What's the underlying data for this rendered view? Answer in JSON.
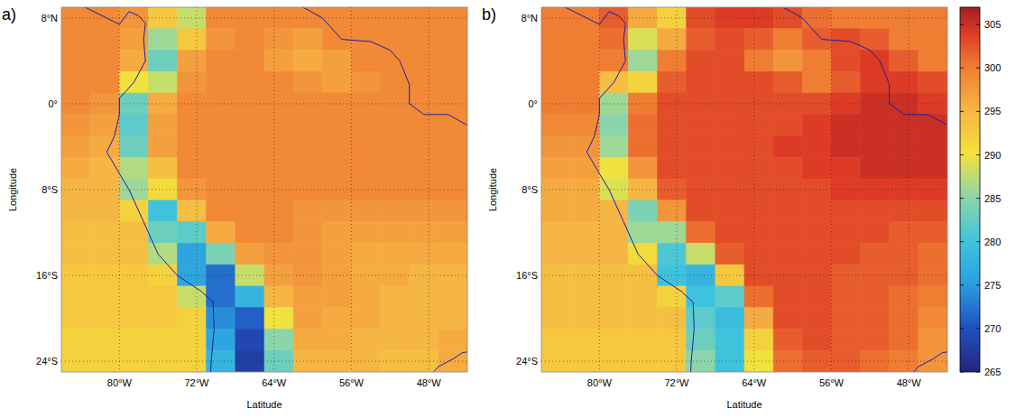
{
  "chart_data": [
    {
      "type": "heatmap",
      "title": "a)",
      "x_label": "Latitude",
      "y_label": "Longitude",
      "xlim": [
        -86,
        -44
      ],
      "ylim": [
        -25,
        9
      ],
      "grid": true,
      "xticks": [
        {
          "value": -80,
          "label": "80°W"
        },
        {
          "value": -72,
          "label": "72°W"
        },
        {
          "value": -64,
          "label": "64°W"
        },
        {
          "value": -56,
          "label": "56°W"
        },
        {
          "value": -48,
          "label": "48°W"
        }
      ],
      "yticks": [
        {
          "value": 8,
          "label": "8°N"
        },
        {
          "value": 0,
          "label": "0°"
        },
        {
          "value": -8,
          "label": "8°S"
        },
        {
          "value": -16,
          "label": "16°S"
        },
        {
          "value": -24,
          "label": "24°S"
        }
      ],
      "x": [
        -84.5,
        -81.5,
        -78.5,
        -75.5,
        -72.5,
        -69.5,
        -66.5,
        -63.5,
        -60.5,
        -57.5,
        -54.5,
        -51.5,
        -48.5,
        -45.5
      ],
      "y": [
        8,
        6,
        4,
        2,
        0,
        -2,
        -4,
        -6,
        -8,
        -10,
        -12,
        -14,
        -16,
        -18,
        -20,
        -22,
        -24
      ],
      "cells": [
        [
          299,
          299,
          298,
          293,
          288,
          299,
          299,
          299,
          299,
          299,
          299,
          299,
          299,
          299
        ],
        [
          299,
          299,
          297,
          286,
          293,
          298,
          299,
          298,
          297,
          299,
          299,
          299,
          299,
          299
        ],
        [
          299,
          299,
          296,
          283,
          297,
          299,
          299,
          297,
          296,
          297,
          299,
          299,
          299,
          299
        ],
        [
          299,
          299,
          290,
          288,
          298,
          299,
          299,
          299,
          298,
          297,
          298,
          299,
          299,
          299
        ],
        [
          299,
          298,
          283,
          296,
          299,
          299,
          299,
          299,
          299,
          299,
          299,
          299,
          299,
          299
        ],
        [
          298,
          297,
          282,
          297,
          299,
          299,
          299,
          299,
          299,
          299,
          299,
          299,
          299,
          299
        ],
        [
          297,
          296,
          283,
          297,
          299,
          299,
          299,
          299,
          299,
          299,
          299,
          299,
          299,
          299
        ],
        [
          296,
          295,
          287,
          294,
          299,
          299,
          299,
          299,
          299,
          299,
          299,
          299,
          299,
          299
        ],
        [
          295,
          295,
          286,
          291,
          298,
          299,
          299,
          299,
          299,
          299,
          299,
          299,
          299,
          299
        ],
        [
          295,
          295,
          292,
          280,
          294,
          299,
          299,
          299,
          298,
          298,
          298,
          298,
          298,
          298
        ],
        [
          294,
          294,
          294,
          283,
          282,
          296,
          299,
          299,
          298,
          297,
          297,
          297,
          297,
          297
        ],
        [
          294,
          294,
          294,
          287,
          276,
          284,
          297,
          298,
          298,
          297,
          296,
          296,
          296,
          296
        ],
        [
          293,
          293,
          293,
          292,
          276,
          272,
          288,
          297,
          298,
          297,
          296,
          296,
          295,
          295
        ],
        [
          293,
          293,
          293,
          293,
          288,
          272,
          278,
          295,
          297,
          297,
          296,
          295,
          295,
          295
        ],
        [
          293,
          293,
          293,
          293,
          292,
          274,
          271,
          290,
          297,
          296,
          296,
          295,
          295,
          295
        ],
        [
          292,
          292,
          292,
          292,
          292,
          276,
          269,
          285,
          296,
          296,
          295,
          295,
          295,
          296
        ],
        [
          292,
          292,
          292,
          292,
          292,
          278,
          268,
          283,
          295,
          295,
          295,
          294,
          294,
          296
        ]
      ]
    },
    {
      "type": "heatmap",
      "title": "b)",
      "x_label": "Latitude",
      "y_label": "Longitude",
      "xlim": [
        -86,
        -44
      ],
      "ylim": [
        -25,
        9
      ],
      "grid": true,
      "xticks": [
        {
          "value": -80,
          "label": "80°W"
        },
        {
          "value": -72,
          "label": "72°W"
        },
        {
          "value": -64,
          "label": "64°W"
        },
        {
          "value": -56,
          "label": "56°W"
        },
        {
          "value": -48,
          "label": "48°W"
        }
      ],
      "yticks": [
        {
          "value": 8,
          "label": "8°N"
        },
        {
          "value": 0,
          "label": "0°"
        },
        {
          "value": -8,
          "label": "8°S"
        },
        {
          "value": -16,
          "label": "16°S"
        },
        {
          "value": -24,
          "label": "24°S"
        }
      ],
      "x": [
        -84.5,
        -81.5,
        -78.5,
        -75.5,
        -72.5,
        -69.5,
        -66.5,
        -63.5,
        -60.5,
        -57.5,
        -54.5,
        -51.5,
        -48.5,
        -45.5
      ],
      "y": [
        8,
        6,
        4,
        2,
        0,
        -2,
        -4,
        -6,
        -8,
        -10,
        -12,
        -14,
        -16,
        -18,
        -20,
        -22,
        -24
      ],
      "cells": [
        [
          300,
          300,
          302,
          296,
          292,
          303,
          304,
          304,
          303,
          301,
          300,
          300,
          300,
          300
        ],
        [
          300,
          300,
          301,
          289,
          296,
          302,
          303,
          302,
          300,
          302,
          303,
          302,
          300,
          300
        ],
        [
          300,
          300,
          300,
          286,
          300,
          303,
          303,
          300,
          298,
          300,
          303,
          304,
          302,
          300
        ],
        [
          300,
          300,
          294,
          292,
          302,
          303,
          303,
          303,
          302,
          300,
          302,
          304,
          304,
          303
        ],
        [
          300,
          300,
          286,
          300,
          303,
          303,
          303,
          303,
          303,
          303,
          304,
          305,
          305,
          304
        ],
        [
          299,
          299,
          285,
          301,
          303,
          303,
          303,
          303,
          303,
          304,
          305,
          305,
          305,
          305
        ],
        [
          298,
          298,
          286,
          301,
          303,
          303,
          303,
          303,
          304,
          304,
          305,
          305,
          305,
          305
        ],
        [
          297,
          297,
          290,
          298,
          303,
          303,
          303,
          303,
          303,
          304,
          304,
          305,
          305,
          305
        ],
        [
          296,
          296,
          289,
          295,
          302,
          303,
          303,
          303,
          303,
          303,
          304,
          304,
          304,
          304
        ],
        [
          296,
          296,
          295,
          284,
          298,
          303,
          303,
          303,
          303,
          303,
          303,
          303,
          303,
          303
        ],
        [
          295,
          295,
          295,
          286,
          286,
          301,
          303,
          303,
          303,
          303,
          303,
          303,
          302,
          302
        ],
        [
          295,
          295,
          295,
          291,
          281,
          288,
          302,
          303,
          303,
          303,
          303,
          302,
          302,
          301
        ],
        [
          294,
          294,
          294,
          294,
          280,
          278,
          293,
          303,
          303,
          303,
          302,
          302,
          302,
          301
        ],
        [
          294,
          294,
          294,
          294,
          292,
          280,
          282,
          301,
          303,
          303,
          302,
          302,
          301,
          300
        ],
        [
          294,
          294,
          294,
          294,
          294,
          282,
          279,
          296,
          303,
          303,
          302,
          302,
          301,
          299
        ],
        [
          293,
          293,
          293,
          293,
          293,
          283,
          280,
          292,
          302,
          303,
          302,
          302,
          301,
          298
        ],
        [
          293,
          293,
          293,
          293,
          293,
          285,
          280,
          290,
          301,
          302,
          302,
          301,
          300,
          298
        ]
      ],
      "colorbar": {
        "range": [
          265,
          307
        ],
        "ticks": [
          265,
          270,
          275,
          280,
          285,
          290,
          295,
          300,
          305
        ]
      }
    }
  ]
}
